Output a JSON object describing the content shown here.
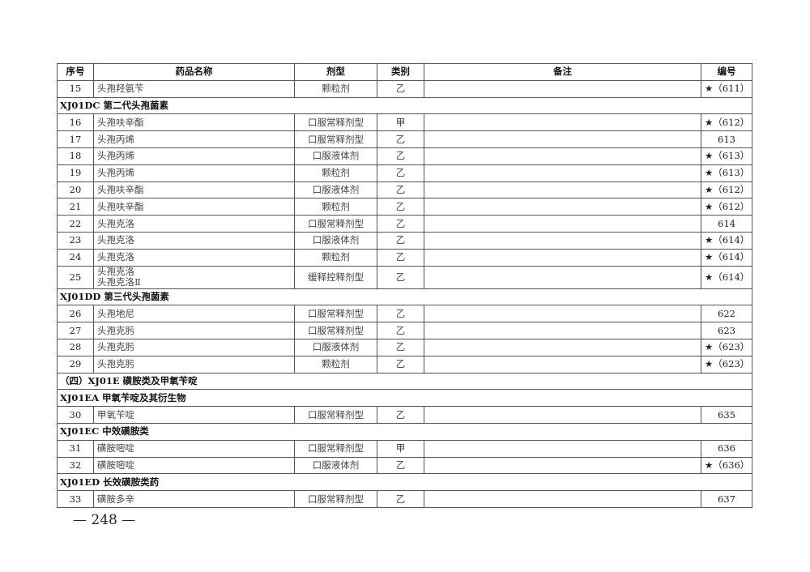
{
  "table": {
    "headers": [
      "序号",
      "药品名称",
      "剂型",
      "类别",
      "备注",
      "编号"
    ],
    "rows": [
      {
        "type": "drug",
        "no": "15",
        "name": "头孢羟氨苄",
        "form": "颗粒剂",
        "cat": "乙",
        "note": "",
        "code": "★（611）"
      },
      {
        "type": "section",
        "label": "XJ01DC  第二代头孢菌素"
      },
      {
        "type": "drug",
        "no": "16",
        "name": "头孢呋辛酯",
        "form": "口服常释剂型",
        "cat": "甲",
        "note": "",
        "code": "★（612）"
      },
      {
        "type": "drug",
        "no": "17",
        "name": "头孢丙烯",
        "form": "口服常释剂型",
        "cat": "乙",
        "note": "",
        "code": "613"
      },
      {
        "type": "drug",
        "no": "18",
        "name": "头孢丙烯",
        "form": "口服液体剂",
        "cat": "乙",
        "note": "",
        "code": "★（613）"
      },
      {
        "type": "drug",
        "no": "19",
        "name": "头孢丙烯",
        "form": "颗粒剂",
        "cat": "乙",
        "note": "",
        "code": "★（613）"
      },
      {
        "type": "drug",
        "no": "20",
        "name": "头孢呋辛酯",
        "form": "口服液体剂",
        "cat": "乙",
        "note": "",
        "code": "★（612）"
      },
      {
        "type": "drug",
        "no": "21",
        "name": "头孢呋辛酯",
        "form": "颗粒剂",
        "cat": "乙",
        "note": "",
        "code": "★（612）"
      },
      {
        "type": "drug",
        "no": "22",
        "name": "头孢克洛",
        "form": "口服常释剂型",
        "cat": "乙",
        "note": "",
        "code": "614"
      },
      {
        "type": "drug",
        "no": "23",
        "name": "头孢克洛",
        "form": "口服液体剂",
        "cat": "乙",
        "note": "",
        "code": "★（614）"
      },
      {
        "type": "drug",
        "no": "24",
        "name": "头孢克洛",
        "form": "颗粒剂",
        "cat": "乙",
        "note": "",
        "code": "★（614）"
      },
      {
        "type": "drug",
        "no": "25",
        "name": "头孢克洛",
        "name2": "头孢克洛Ⅱ",
        "form": "缓释控释剂型",
        "cat": "乙",
        "note": "",
        "code": "★（614）"
      },
      {
        "type": "section",
        "label": "XJ01DD  第三代头孢菌素"
      },
      {
        "type": "drug",
        "no": "26",
        "name": "头孢地尼",
        "form": "口服常释剂型",
        "cat": "乙",
        "note": "",
        "code": "622"
      },
      {
        "type": "drug",
        "no": "27",
        "name": "头孢克肟",
        "form": "口服常释剂型",
        "cat": "乙",
        "note": "",
        "code": "623"
      },
      {
        "type": "drug",
        "no": "28",
        "name": "头孢克肟",
        "form": "口服液体剂",
        "cat": "乙",
        "note": "",
        "code": "★（623）"
      },
      {
        "type": "drug",
        "no": "29",
        "name": "头孢克肟",
        "form": "颗粒剂",
        "cat": "乙",
        "note": "",
        "code": "★（623）"
      },
      {
        "type": "section",
        "label": "（四）XJ01E  磺胺类及甲氧苄啶"
      },
      {
        "type": "section",
        "label": "XJ01EA  甲氧苄啶及其衍生物"
      },
      {
        "type": "drug",
        "no": "30",
        "name": "甲氧苄啶",
        "form": "口服常释剂型",
        "cat": "乙",
        "note": "",
        "code": "635"
      },
      {
        "type": "section",
        "label": "XJ01EC  中效磺胺类"
      },
      {
        "type": "drug",
        "no": "31",
        "name": "磺胺嘧啶",
        "form": "口服常释剂型",
        "cat": "甲",
        "note": "",
        "code": "636"
      },
      {
        "type": "drug",
        "no": "32",
        "name": "磺胺嘧啶",
        "form": "口服液体剂",
        "cat": "乙",
        "note": "",
        "code": "★（636）"
      },
      {
        "type": "section",
        "label": "XJ01ED  长效磺胺类药"
      },
      {
        "type": "drug",
        "no": "33",
        "name": "磺胺多辛",
        "form": "口服常释剂型",
        "cat": "乙",
        "note": "",
        "code": "637"
      }
    ]
  },
  "page_number": "— 248 —"
}
